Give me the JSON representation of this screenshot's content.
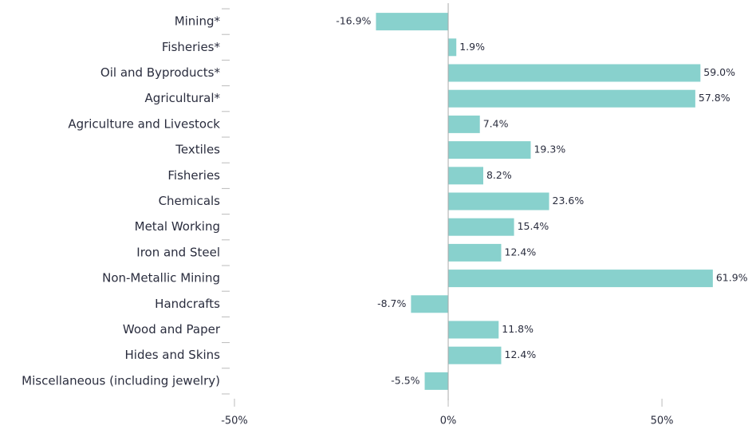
{
  "chart_data": {
    "type": "bar",
    "orientation": "horizontal",
    "categories": [
      "Mining*",
      "Fisheries*",
      "Oil and Byproducts*",
      "Agricultural*",
      "Agriculture and Livestock",
      "Textiles",
      "Fisheries",
      "Chemicals",
      "Metal Working",
      "Iron and Steel",
      "Non-Metallic Mining",
      "Handcrafts",
      "Wood and Paper",
      "Hides and Skins",
      "Miscellaneous (including jewelry)"
    ],
    "values": [
      -16.9,
      1.9,
      59.0,
      57.8,
      7.4,
      19.3,
      8.2,
      23.6,
      15.4,
      12.4,
      61.9,
      -8.7,
      11.8,
      12.4,
      -5.5
    ],
    "value_labels": [
      "-16.9%",
      "1.9%",
      "59.0%",
      "57.8%",
      "7.4%",
      "19.3%",
      "8.2%",
      "23.6%",
      "15.4%",
      "12.4%",
      "61.9%",
      "-8.7%",
      "11.8%",
      "12.4%",
      "-5.5%"
    ],
    "color": "#88d1cd",
    "xlim": [
      -50,
      72
    ],
    "xticks": [
      {
        "value": -50,
        "label": "-50%"
      },
      {
        "value": 0,
        "label": "0%"
      },
      {
        "value": 50,
        "label": "50%"
      }
    ],
    "grid": false
  }
}
